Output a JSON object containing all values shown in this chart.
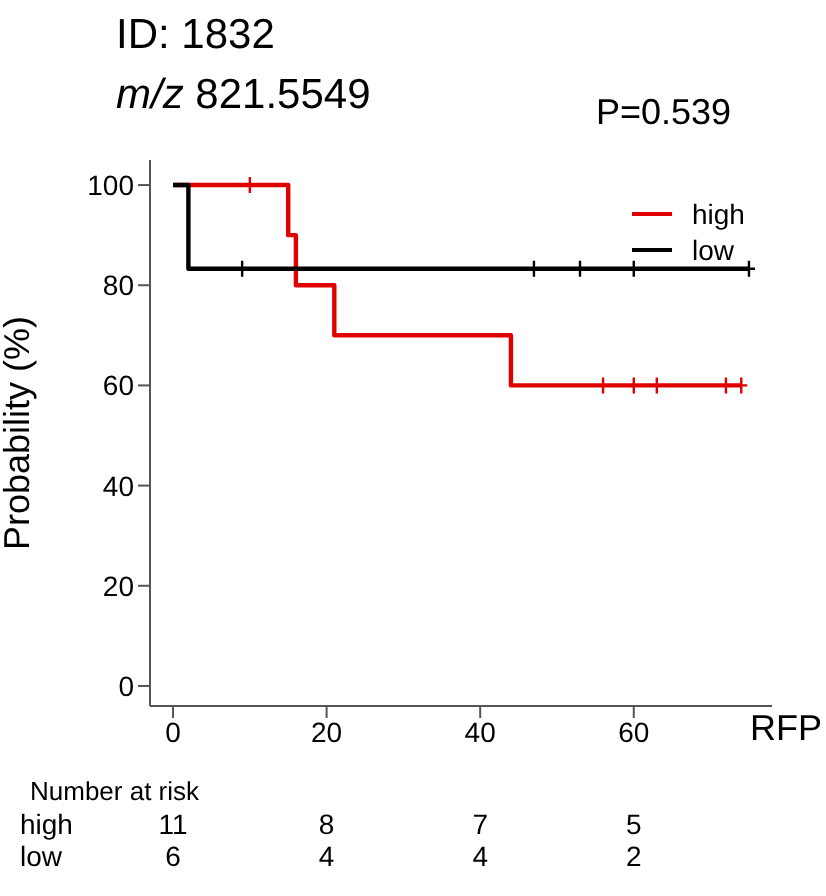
{
  "chart_data": {
    "type": "step",
    "title": "ID: 1832",
    "subtitle": "m/z 821.5549",
    "xlabel": "RFP",
    "ylabel": "Probability (%)",
    "xlim": [
      -3,
      78
    ],
    "xticks": [
      0,
      20,
      40,
      60
    ],
    "ylim": [
      -4,
      105
    ],
    "yticks": [
      0,
      20,
      40,
      60,
      80,
      100
    ],
    "legend": "top right",
    "marker": "none",
    "line_style": "solid",
    "series": [
      {
        "name": "high",
        "color": "#e00000",
        "x": [
          0,
          15,
          16,
          21,
          44,
          74
        ],
        "values": [
          100,
          90,
          80,
          70,
          60,
          60
        ]
      },
      {
        "name": "low",
        "color": "#000000",
        "x": [
          0,
          2,
          75
        ],
        "values": [
          100,
          83.3,
          83.3
        ]
      },
      {
        "type": "scatter",
        "marker": "cross",
        "color": "#e00000",
        "x": [
          10,
          56,
          60,
          63,
          72,
          74
        ],
        "values": [
          100,
          60,
          60,
          60,
          60,
          60
        ]
      },
      {
        "type": "scatter",
        "marker": "cross",
        "color": "#000000",
        "x": [
          9,
          47,
          53,
          60,
          75
        ],
        "values": [
          83.3,
          83.3,
          83.3,
          83.3,
          83.3
        ]
      }
    ],
    "annotations": [
      "P=0.539",
      "Number at risk",
      "high",
      "11",
      "8",
      "7",
      "5",
      "low",
      "6",
      "4",
      "4",
      "2"
    ]
  }
}
